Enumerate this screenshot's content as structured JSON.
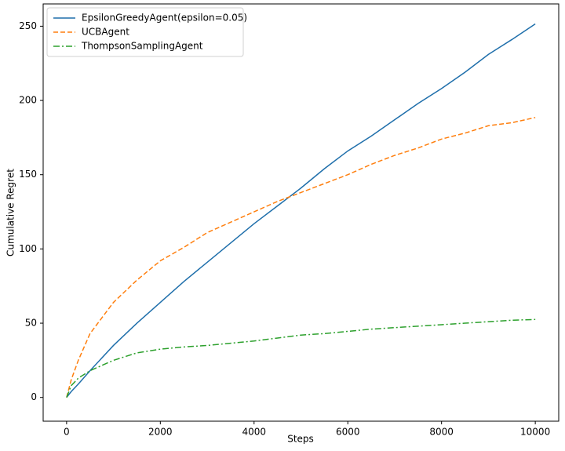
{
  "chart_data": {
    "type": "line",
    "x_label": "Steps",
    "y_label": "Cumulative Regret",
    "x": [
      0,
      100,
      250,
      500,
      1000,
      1500,
      2000,
      2500,
      3000,
      3500,
      4000,
      4500,
      5000,
      5500,
      6000,
      6500,
      7000,
      7500,
      8000,
      8500,
      9000,
      9500,
      10000
    ],
    "series": [
      {
        "name": "EpsilonGreedyAgent(epsilon=0.05)",
        "color": "#1f6fab",
        "linestyle": "solid",
        "values": [
          0,
          4,
          9,
          18,
          35,
          50,
          64,
          78,
          91,
          104,
          117,
          129,
          141,
          154,
          166,
          176,
          187,
          198,
          208,
          219,
          231,
          241,
          251.5
        ]
      },
      {
        "name": "UCBAgent",
        "color": "#ff7f0e",
        "linestyle": "dashed",
        "values": [
          0,
          12,
          25,
          43,
          64,
          79,
          92,
          101,
          111,
          118,
          125,
          132,
          138,
          144,
          150,
          157,
          163,
          168,
          174,
          178,
          183,
          185,
          188.5
        ]
      },
      {
        "name": "ThompsonSamplingAgent",
        "color": "#2ca02c",
        "linestyle": "dashdot",
        "values": [
          0,
          8,
          13,
          18,
          25,
          30,
          32.5,
          34,
          35,
          36.5,
          38,
          40,
          42,
          43,
          44.5,
          46,
          47,
          48,
          49,
          50,
          51,
          52,
          52.5
        ]
      }
    ],
    "xlim": [
      -500,
      10500
    ],
    "ylim": [
      -16,
      265
    ],
    "xticks": [
      0,
      2000,
      4000,
      6000,
      8000,
      10000
    ],
    "yticks": [
      0,
      50,
      100,
      150,
      200,
      250
    ],
    "legend": "upper left",
    "grid": false
  }
}
